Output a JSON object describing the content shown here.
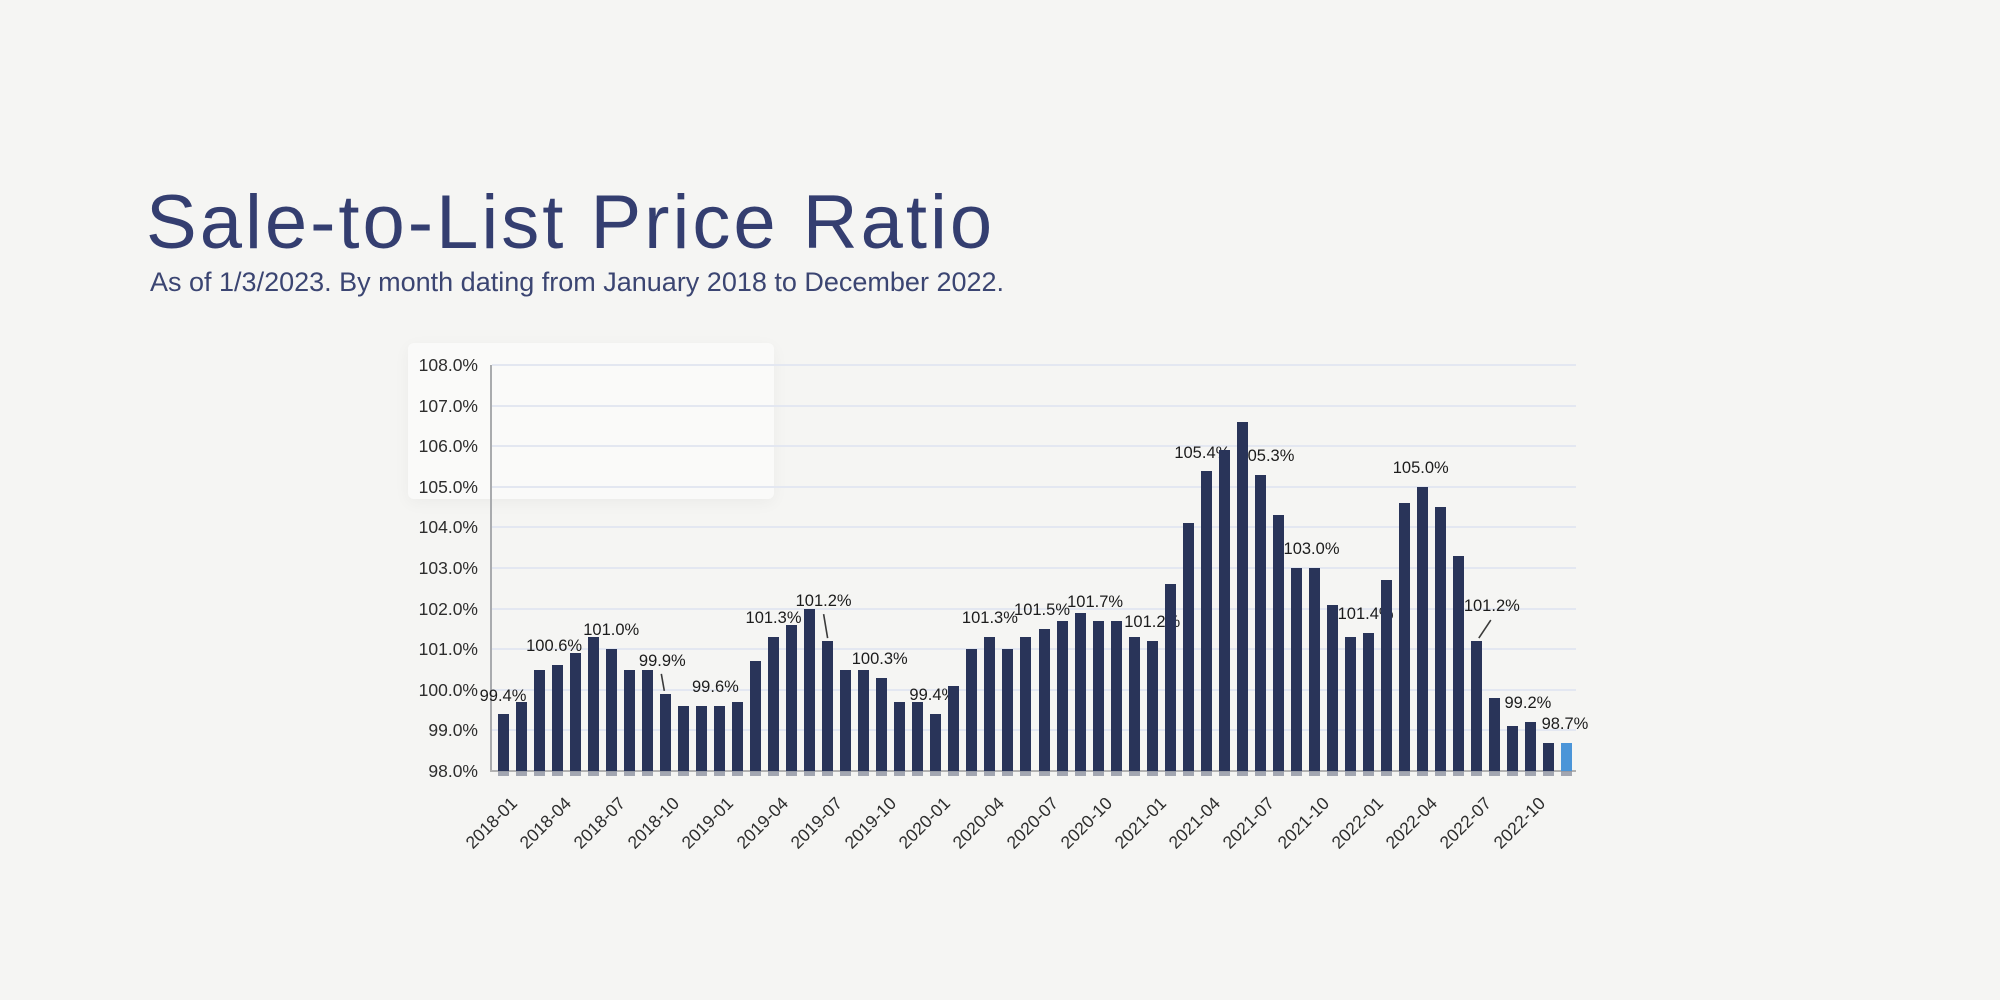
{
  "header": {
    "title": "Sale-to-List Price Ratio",
    "subtitle": "As of 1/3/2023. By month dating from January 2018 to December 2022."
  },
  "colors": {
    "background": "#f5f5f3",
    "title_text": "#343e70",
    "subtitle_text": "#3b4572",
    "bar": "#293459",
    "bar_highlight": "#4b95d8",
    "gridline": "#e3e7f1",
    "y_axis": "#a9abae",
    "x_axis": "#b2b2b2",
    "bar_base_stub": "#8d92a0",
    "label_text": "#1c1c1c",
    "tick_text": "#2d2d2d",
    "leader_line": "#3a3a3a"
  },
  "chart_data": {
    "type": "bar",
    "title": "Sale-to-List Price Ratio",
    "xlabel": "",
    "ylabel": "",
    "ylim": [
      98.0,
      108.0
    ],
    "ytick_step": 1.0,
    "grid": true,
    "legend": "none",
    "categories": [
      "2018-01",
      "2018-02",
      "2018-03",
      "2018-04",
      "2018-05",
      "2018-06",
      "2018-07",
      "2018-08",
      "2018-09",
      "2018-10",
      "2018-11",
      "2018-12",
      "2019-01",
      "2019-02",
      "2019-03",
      "2019-04",
      "2019-05",
      "2019-06",
      "2019-07",
      "2019-08",
      "2019-09",
      "2019-10",
      "2019-11",
      "2019-12",
      "2020-01",
      "2020-02",
      "2020-03",
      "2020-04",
      "2020-05",
      "2020-06",
      "2020-07",
      "2020-08",
      "2020-09",
      "2020-10",
      "2020-11",
      "2020-12",
      "2021-01",
      "2021-02",
      "2021-03",
      "2021-04",
      "2021-05",
      "2021-06",
      "2021-07",
      "2021-08",
      "2021-09",
      "2021-10",
      "2021-11",
      "2021-12",
      "2022-01",
      "2022-02",
      "2022-03",
      "2022-04",
      "2022-05",
      "2022-06",
      "2022-07",
      "2022-08",
      "2022-09",
      "2022-10",
      "2022-11",
      "2022-12"
    ],
    "values": [
      99.4,
      99.7,
      100.5,
      100.6,
      100.9,
      101.3,
      101.0,
      100.5,
      100.5,
      99.9,
      99.6,
      99.6,
      99.6,
      99.7,
      100.7,
      101.3,
      101.6,
      102.0,
      101.2,
      100.5,
      100.5,
      100.3,
      99.7,
      99.7,
      99.4,
      100.1,
      101.0,
      101.3,
      101.0,
      101.3,
      101.5,
      101.7,
      101.9,
      101.7,
      101.7,
      101.3,
      101.2,
      102.6,
      104.1,
      105.4,
      105.9,
      106.6,
      105.3,
      104.3,
      103.0,
      103.0,
      102.1,
      101.3,
      101.4,
      102.7,
      104.6,
      105.0,
      104.5,
      103.3,
      101.2,
      99.8,
      99.1,
      99.2,
      98.7,
      98.7
    ],
    "highlighted_category": "2022-12",
    "yticks": [
      "98.0%",
      "99.0%",
      "100.0%",
      "101.0%",
      "102.0%",
      "103.0%",
      "104.0%",
      "105.0%",
      "106.0%",
      "107.0%",
      "108.0%"
    ],
    "xticks": [
      "2018-01",
      "2018-04",
      "2018-07",
      "2018-10",
      "2019-01",
      "2019-04",
      "2019-07",
      "2019-10",
      "2020-01",
      "2020-04",
      "2020-07",
      "2020-10",
      "2021-01",
      "2021-04",
      "2021-07",
      "2021-10",
      "2022-01",
      "2022-04",
      "2022-07",
      "2022-10"
    ],
    "value_labels": [
      {
        "category": "2018-01",
        "text": "99.4%",
        "dx": 0,
        "gap": 8,
        "leader": null
      },
      {
        "category": "2018-04",
        "text": "100.6%",
        "dx": -3,
        "gap": 9,
        "leader": null
      },
      {
        "category": "2018-07",
        "text": "101.0%",
        "dx": 0,
        "gap": 9,
        "leader": null
      },
      {
        "category": "2018-10",
        "text": "99.9%",
        "dx": -3,
        "gap": 23,
        "leader": [
          -4,
          -20,
          -1,
          -3
        ]
      },
      {
        "category": "2019-01",
        "text": "99.6%",
        "dx": -4,
        "gap": 9,
        "leader": null
      },
      {
        "category": "2019-04",
        "text": "101.3%",
        "dx": 0,
        "gap": 9,
        "leader": null
      },
      {
        "category": "2019-07",
        "text": "101.2%",
        "dx": -4,
        "gap": 30,
        "leader": [
          -4,
          -27,
          0,
          -3
        ]
      },
      {
        "category": "2019-10",
        "text": "100.3%",
        "dx": -2,
        "gap": 9,
        "leader": null
      },
      {
        "category": "2020-01",
        "text": "99.4%",
        "dx": -3,
        "gap": 9,
        "leader": null
      },
      {
        "category": "2020-04",
        "text": "101.3%",
        "dx": 0,
        "gap": 9,
        "leader": null
      },
      {
        "category": "2020-07",
        "text": "101.5%",
        "dx": -2,
        "gap": 9,
        "leader": null
      },
      {
        "category": "2020-10",
        "text": "101.7%",
        "dx": -3,
        "gap": 9,
        "leader": null
      },
      {
        "category": "2021-01",
        "text": "101.2%",
        "dx": 0,
        "gap": 9,
        "leader": null
      },
      {
        "category": "2021-04",
        "text": "105.4%",
        "dx": -4,
        "gap": 8,
        "leader": null
      },
      {
        "category": "2021-07",
        "text": "105.3%",
        "dx": 6,
        "gap": 9,
        "leader": null
      },
      {
        "category": "2021-10",
        "text": "103.0%",
        "dx": -3,
        "gap": 9,
        "leader": null
      },
      {
        "category": "2022-01",
        "text": "101.4%",
        "dx": -3,
        "gap": 9,
        "leader": null
      },
      {
        "category": "2022-04",
        "text": "105.0%",
        "dx": -2,
        "gap": 9,
        "leader": null
      },
      {
        "category": "2022-07",
        "text": "101.2%",
        "dx": 15,
        "gap": 25,
        "leader": [
          14,
          -21,
          2,
          -3
        ]
      },
      {
        "category": "2022-10",
        "text": "99.2%",
        "dx": -3,
        "gap": 9,
        "leader": null
      },
      {
        "category": "2022-12",
        "text": "98.7%",
        "dx": -2,
        "gap": 9,
        "leader": null
      }
    ]
  }
}
